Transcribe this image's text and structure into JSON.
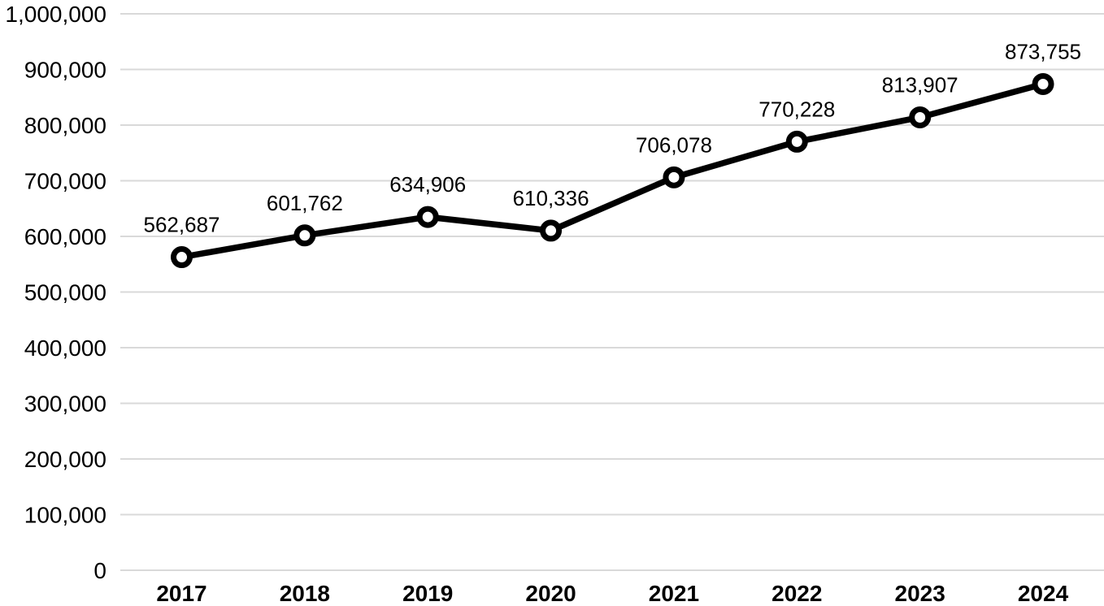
{
  "chart_data": {
    "type": "line",
    "title": "",
    "xlabel": "",
    "ylabel": "",
    "categories": [
      "2017",
      "2018",
      "2019",
      "2020",
      "2021",
      "2022",
      "2023",
      "2024"
    ],
    "values": [
      562687,
      601762,
      634906,
      610336,
      706078,
      770228,
      813907,
      873755
    ],
    "point_labels": [
      "562,687",
      "601,762",
      "634,906",
      "610,336",
      "706,078",
      "770,228",
      "813,907",
      "873,755"
    ],
    "ylim": [
      0,
      1000000
    ],
    "y_tick_values": [
      0,
      100000,
      200000,
      300000,
      400000,
      500000,
      600000,
      700000,
      800000,
      900000,
      1000000
    ],
    "y_tick_labels": [
      "0",
      "100,000",
      "200,000",
      "300,000",
      "400,000",
      "500,000",
      "600,000",
      "700,000",
      "800,000",
      "900,000",
      "1,000,000"
    ],
    "legend_position": "none",
    "grid": "horizontal",
    "colors": {
      "line": "#000000",
      "marker_fill": "#ffffff",
      "marker_stroke": "#000000",
      "gridline": "#d9d9d9",
      "text": "#000000",
      "background": "#ffffff"
    }
  }
}
